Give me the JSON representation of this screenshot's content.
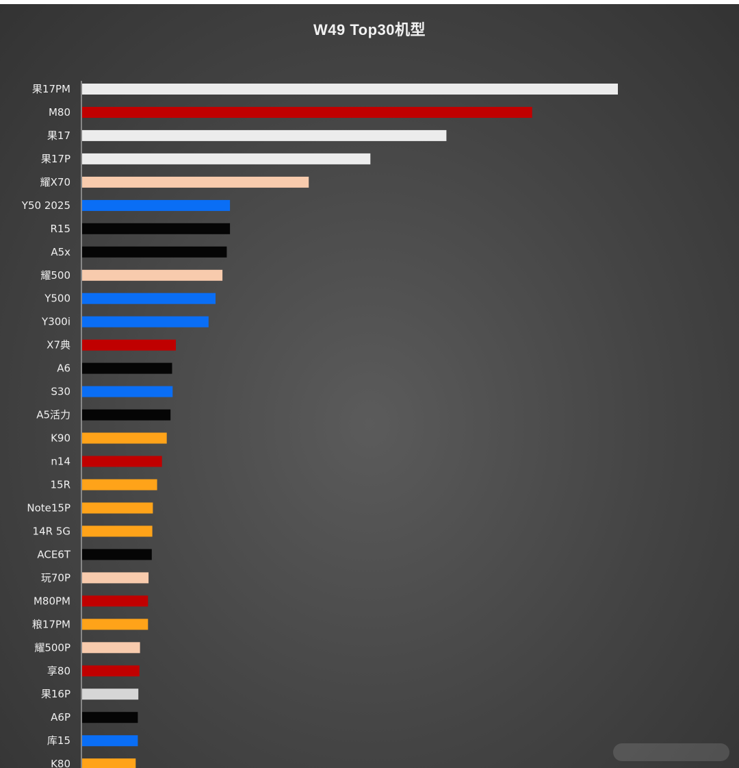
{
  "chart_data": {
    "type": "bar",
    "orientation": "horizontal",
    "title": "W49 Top30机型",
    "xlabel": "",
    "ylabel": "",
    "grid": false,
    "legend": "none",
    "xlim": [
      0,
      1000
    ],
    "categories": [
      "果17PM",
      "M80",
      "果17",
      "果17P",
      "耀X70",
      "Y50 2025",
      "R15",
      "A5x",
      "耀500",
      "Y500",
      "Y300i",
      "X7典",
      "A6",
      "S30",
      "A5活力",
      "K90",
      "n14",
      "15R",
      "Note15P",
      "14R 5G",
      "ACE6T",
      "玩70P",
      "M80PM",
      "粮17PM",
      "耀500P",
      "享80",
      "果16P",
      "A6P",
      "库15",
      "K80"
    ],
    "values": [
      1000,
      840,
      680,
      538,
      423,
      276,
      276,
      270,
      262,
      249,
      236,
      175,
      168,
      169,
      165,
      158,
      149,
      140,
      132,
      131,
      130,
      124,
      123,
      123,
      108,
      107,
      105,
      104,
      104,
      100
    ],
    "colors": [
      "#ececec",
      "#c00000",
      "#ececec",
      "#ececec",
      "#f8cbad",
      "#0a6ef5",
      "#050505",
      "#050505",
      "#f8cbad",
      "#0a6ef5",
      "#0a6ef5",
      "#c00000",
      "#050505",
      "#0a6ef5",
      "#050505",
      "#ffa319",
      "#c00000",
      "#ffa319",
      "#ffa319",
      "#ffa319",
      "#050505",
      "#f8cbad",
      "#c00000",
      "#ffa319",
      "#f8cbad",
      "#c00000",
      "#d6d6d6",
      "#050505",
      "#0a6ef5",
      "#ffa319"
    ]
  }
}
